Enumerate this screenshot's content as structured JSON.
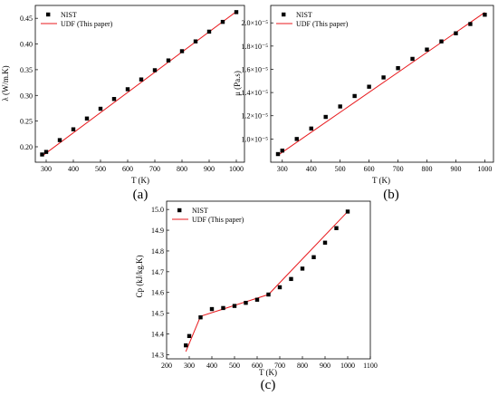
{
  "figure": {
    "panels": [
      {
        "label": "(a)",
        "xlabel": "T (K)",
        "ylabel": "λ (W/m.K)",
        "legend": {
          "position": "top-left",
          "entries": [
            "NIST",
            "UDF (This paper)"
          ]
        },
        "x_ticks": [
          "300",
          "400",
          "500",
          "600",
          "700",
          "800",
          "900",
          "1000"
        ],
        "y_ticks": [
          "0.20",
          "0.25",
          "0.30",
          "0.35",
          "0.40",
          "0.45"
        ]
      },
      {
        "label": "(b)",
        "xlabel": "T (K)",
        "ylabel": "μ (Pa.s)",
        "legend": {
          "position": "top-left",
          "entries": [
            "NIST",
            "UDF (This paper)"
          ]
        },
        "x_ticks": [
          "300",
          "400",
          "500",
          "600",
          "700",
          "800",
          "900",
          "1000"
        ],
        "y_ticks": [
          "1.0×10⁻⁵",
          "1.2×10⁻⁵",
          "1.4×10⁻⁵",
          "1.6×10⁻⁵",
          "1.8×10⁻⁵",
          "2.0×10⁻⁵"
        ]
      },
      {
        "label": "(c)",
        "xlabel": "T (K)",
        "ylabel": "Cp (kJ/kg.K)",
        "legend": {
          "position": "top-left",
          "entries": [
            "NIST",
            "UDF (This paper)"
          ]
        },
        "x_ticks": [
          "200",
          "300",
          "400",
          "500",
          "600",
          "700",
          "800",
          "900",
          "1000",
          "1100"
        ],
        "y_ticks": [
          "14.3",
          "14.4",
          "14.5",
          "14.6",
          "14.7",
          "14.8",
          "14.9",
          "15.0"
        ]
      }
    ]
  },
  "chart_data": [
    {
      "type": "scatter",
      "xlabel": "T (K)",
      "ylabel": "λ (W/m.K)",
      "xlim": [
        260,
        1030
      ],
      "ylim": [
        0.17,
        0.475
      ],
      "grid": false,
      "legend_position": "top-left",
      "colors": {
        "points": "#000000",
        "line": "#e8191d"
      },
      "series": [
        {
          "name": "NIST",
          "style": "markers",
          "x": [
            285,
            300,
            350,
            400,
            450,
            500,
            550,
            600,
            650,
            700,
            750,
            800,
            850,
            900,
            950,
            1000
          ],
          "y": [
            0.185,
            0.19,
            0.213,
            0.234,
            0.255,
            0.274,
            0.293,
            0.312,
            0.331,
            0.349,
            0.368,
            0.386,
            0.405,
            0.424,
            0.443,
            0.462
          ]
        },
        {
          "name": "UDF (This paper)",
          "style": "line",
          "x": [
            285,
            1000
          ],
          "y": [
            0.182,
            0.463
          ]
        }
      ]
    },
    {
      "type": "scatter",
      "xlabel": "T (K)",
      "ylabel": "μ (Pa.s)",
      "xlim": [
        260,
        1030
      ],
      "ylim": [
        8e-06,
        2.15e-05
      ],
      "grid": false,
      "legend_position": "top-left",
      "colors": {
        "points": "#000000",
        "line": "#e8191d"
      },
      "series": [
        {
          "name": "NIST",
          "style": "markers",
          "x": [
            285,
            300,
            350,
            400,
            450,
            500,
            550,
            600,
            650,
            700,
            750,
            800,
            850,
            900,
            950,
            1000
          ],
          "y": [
            8.7e-06,
            9e-06,
            1e-05,
            1.09e-05,
            1.19e-05,
            1.28e-05,
            1.37e-05,
            1.45e-05,
            1.53e-05,
            1.61e-05,
            1.69e-05,
            1.77e-05,
            1.84e-05,
            1.91e-05,
            1.99e-05,
            2.07e-05
          ]
        },
        {
          "name": "UDF (This paper)",
          "style": "line",
          "x": [
            285,
            1000
          ],
          "y": [
            8.6e-06,
            2.09e-05
          ]
        }
      ]
    },
    {
      "type": "scatter",
      "xlabel": "T (K)",
      "ylabel": "Cp (kJ/kg.K)",
      "xlim": [
        200,
        1100
      ],
      "ylim": [
        14.28,
        15.04
      ],
      "grid": false,
      "legend_position": "top-left",
      "colors": {
        "points": "#000000",
        "line": "#e8191d"
      },
      "series": [
        {
          "name": "NIST",
          "style": "markers",
          "x": [
            285,
            300,
            350,
            400,
            450,
            500,
            550,
            600,
            650,
            700,
            750,
            800,
            850,
            900,
            950,
            1000
          ],
          "y": [
            14.345,
            14.39,
            14.48,
            14.52,
            14.525,
            14.535,
            14.55,
            14.565,
            14.59,
            14.625,
            14.665,
            14.715,
            14.77,
            14.84,
            14.91,
            14.99
          ]
        },
        {
          "name": "UDF (This paper)",
          "style": "line",
          "x": [
            285,
            350,
            650,
            1000
          ],
          "y": [
            14.315,
            14.485,
            14.59,
            14.99
          ]
        }
      ]
    }
  ]
}
